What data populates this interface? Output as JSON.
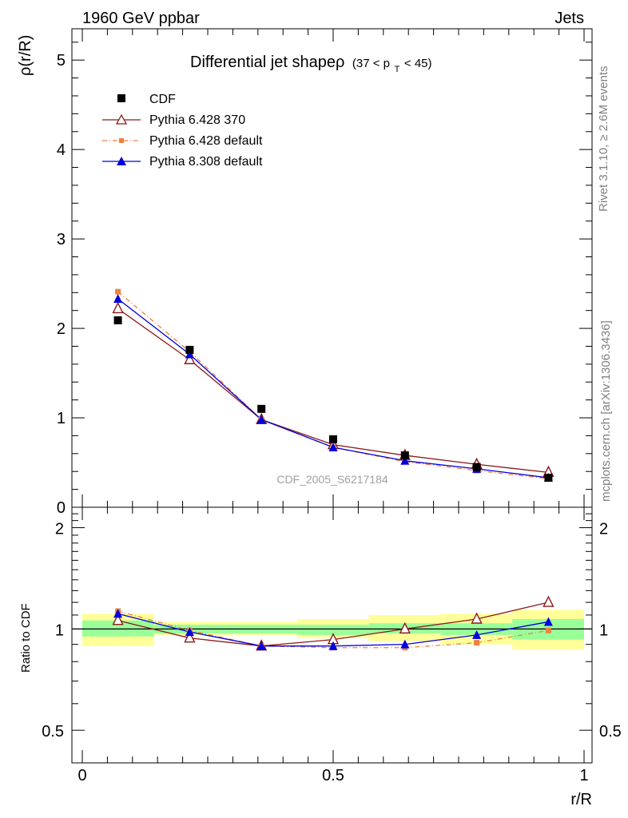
{
  "header": {
    "left": "1960 GeV ppbar",
    "right": "Jets"
  },
  "side_labels": {
    "rivet": "Rivet 3.1.10, ≥ 2.6M events",
    "mcplots": "mcplots.cern.ch [arXiv:1306.3436]"
  },
  "chart_data": [
    {
      "type": "scatter",
      "title_main": "Differential jet shapeρ",
      "title_cut": "(37 < p",
      "title_cut_sub": "T",
      "title_cut_tail": " < 45)",
      "ylabel": "ρ(r/R)",
      "xlim": [
        0,
        1
      ],
      "ylim": [
        0,
        5.35
      ],
      "yticks": [
        0,
        1,
        2,
        3,
        4,
        5
      ],
      "ytick_labels": [
        "0",
        "1",
        "2",
        "3",
        "4",
        "5"
      ],
      "analysis_tag": "CDF_2005_S6217184",
      "x": [
        0.071,
        0.214,
        0.357,
        0.5,
        0.643,
        0.786,
        0.929
      ],
      "series": [
        {
          "name": "CDF",
          "color": "#000000",
          "marker": "square",
          "values": [
            2.09,
            1.76,
            1.1,
            0.76,
            0.58,
            0.45,
            0.33
          ]
        },
        {
          "name": "Pythia 6.428 370",
          "color": "#8b1a1a",
          "marker": "open-triangle",
          "values": [
            2.22,
            1.65,
            0.98,
            0.7,
            0.58,
            0.48,
            0.39
          ]
        },
        {
          "name": "Pythia 6.428 default",
          "color": "#f08040",
          "marker": "small-square",
          "dash": true,
          "values": [
            2.41,
            1.74,
            0.98,
            0.67,
            0.51,
            0.41,
            0.32
          ]
        },
        {
          "name": "Pythia 8.308 default",
          "color": "#0000dd",
          "marker": "filled-triangle",
          "values": [
            2.33,
            1.71,
            0.98,
            0.67,
            0.52,
            0.43,
            0.33
          ]
        }
      ]
    },
    {
      "type": "line",
      "ylabel": "Ratio to CDF",
      "xlabel": "r/R",
      "xlim": [
        0,
        1
      ],
      "ylim": [
        0.4,
        2.3
      ],
      "yticks": [
        0.5,
        1,
        2
      ],
      "ytick_labels": [
        "0.5",
        "1",
        "2"
      ],
      "xticks": [
        0,
        0.5,
        1
      ],
      "xtick_labels": [
        "0",
        "0.5",
        "1"
      ],
      "bands": [
        {
          "x0": 0.0,
          "x1": 0.143,
          "stat": [
            0.95,
            1.06
          ],
          "total": [
            0.89,
            1.11
          ]
        },
        {
          "x0": 0.143,
          "x1": 0.286,
          "stat": [
            0.97,
            1.03
          ],
          "total": [
            0.96,
            1.05
          ]
        },
        {
          "x0": 0.286,
          "x1": 0.429,
          "stat": [
            0.97,
            1.03
          ],
          "total": [
            0.96,
            1.05
          ]
        },
        {
          "x0": 0.429,
          "x1": 0.571,
          "stat": [
            0.96,
            1.03
          ],
          "total": [
            0.94,
            1.07
          ]
        },
        {
          "x0": 0.571,
          "x1": 0.714,
          "stat": [
            0.97,
            1.04
          ],
          "total": [
            0.92,
            1.1
          ]
        },
        {
          "x0": 0.714,
          "x1": 0.857,
          "stat": [
            0.96,
            1.04
          ],
          "total": [
            0.9,
            1.11
          ]
        },
        {
          "x0": 0.857,
          "x1": 1.0,
          "stat": [
            0.93,
            1.07
          ],
          "total": [
            0.87,
            1.14
          ]
        }
      ],
      "x": [
        0.071,
        0.214,
        0.357,
        0.5,
        0.643,
        0.786,
        0.929
      ],
      "series": [
        {
          "name": "Pythia 6.428 370",
          "color": "#8b1a1a",
          "marker": "open-triangle",
          "values": [
            1.06,
            0.94,
            0.89,
            0.93,
            1.0,
            1.07,
            1.2
          ]
        },
        {
          "name": "Pythia 6.428 default",
          "color": "#f08040",
          "marker": "small-square",
          "dash": true,
          "values": [
            1.13,
            0.99,
            0.89,
            0.88,
            0.88,
            0.91,
            0.99
          ]
        },
        {
          "name": "Pythia 8.308 default",
          "color": "#0000dd",
          "marker": "filled-triangle",
          "values": [
            1.11,
            0.98,
            0.89,
            0.89,
            0.9,
            0.96,
            1.05
          ]
        }
      ]
    }
  ]
}
